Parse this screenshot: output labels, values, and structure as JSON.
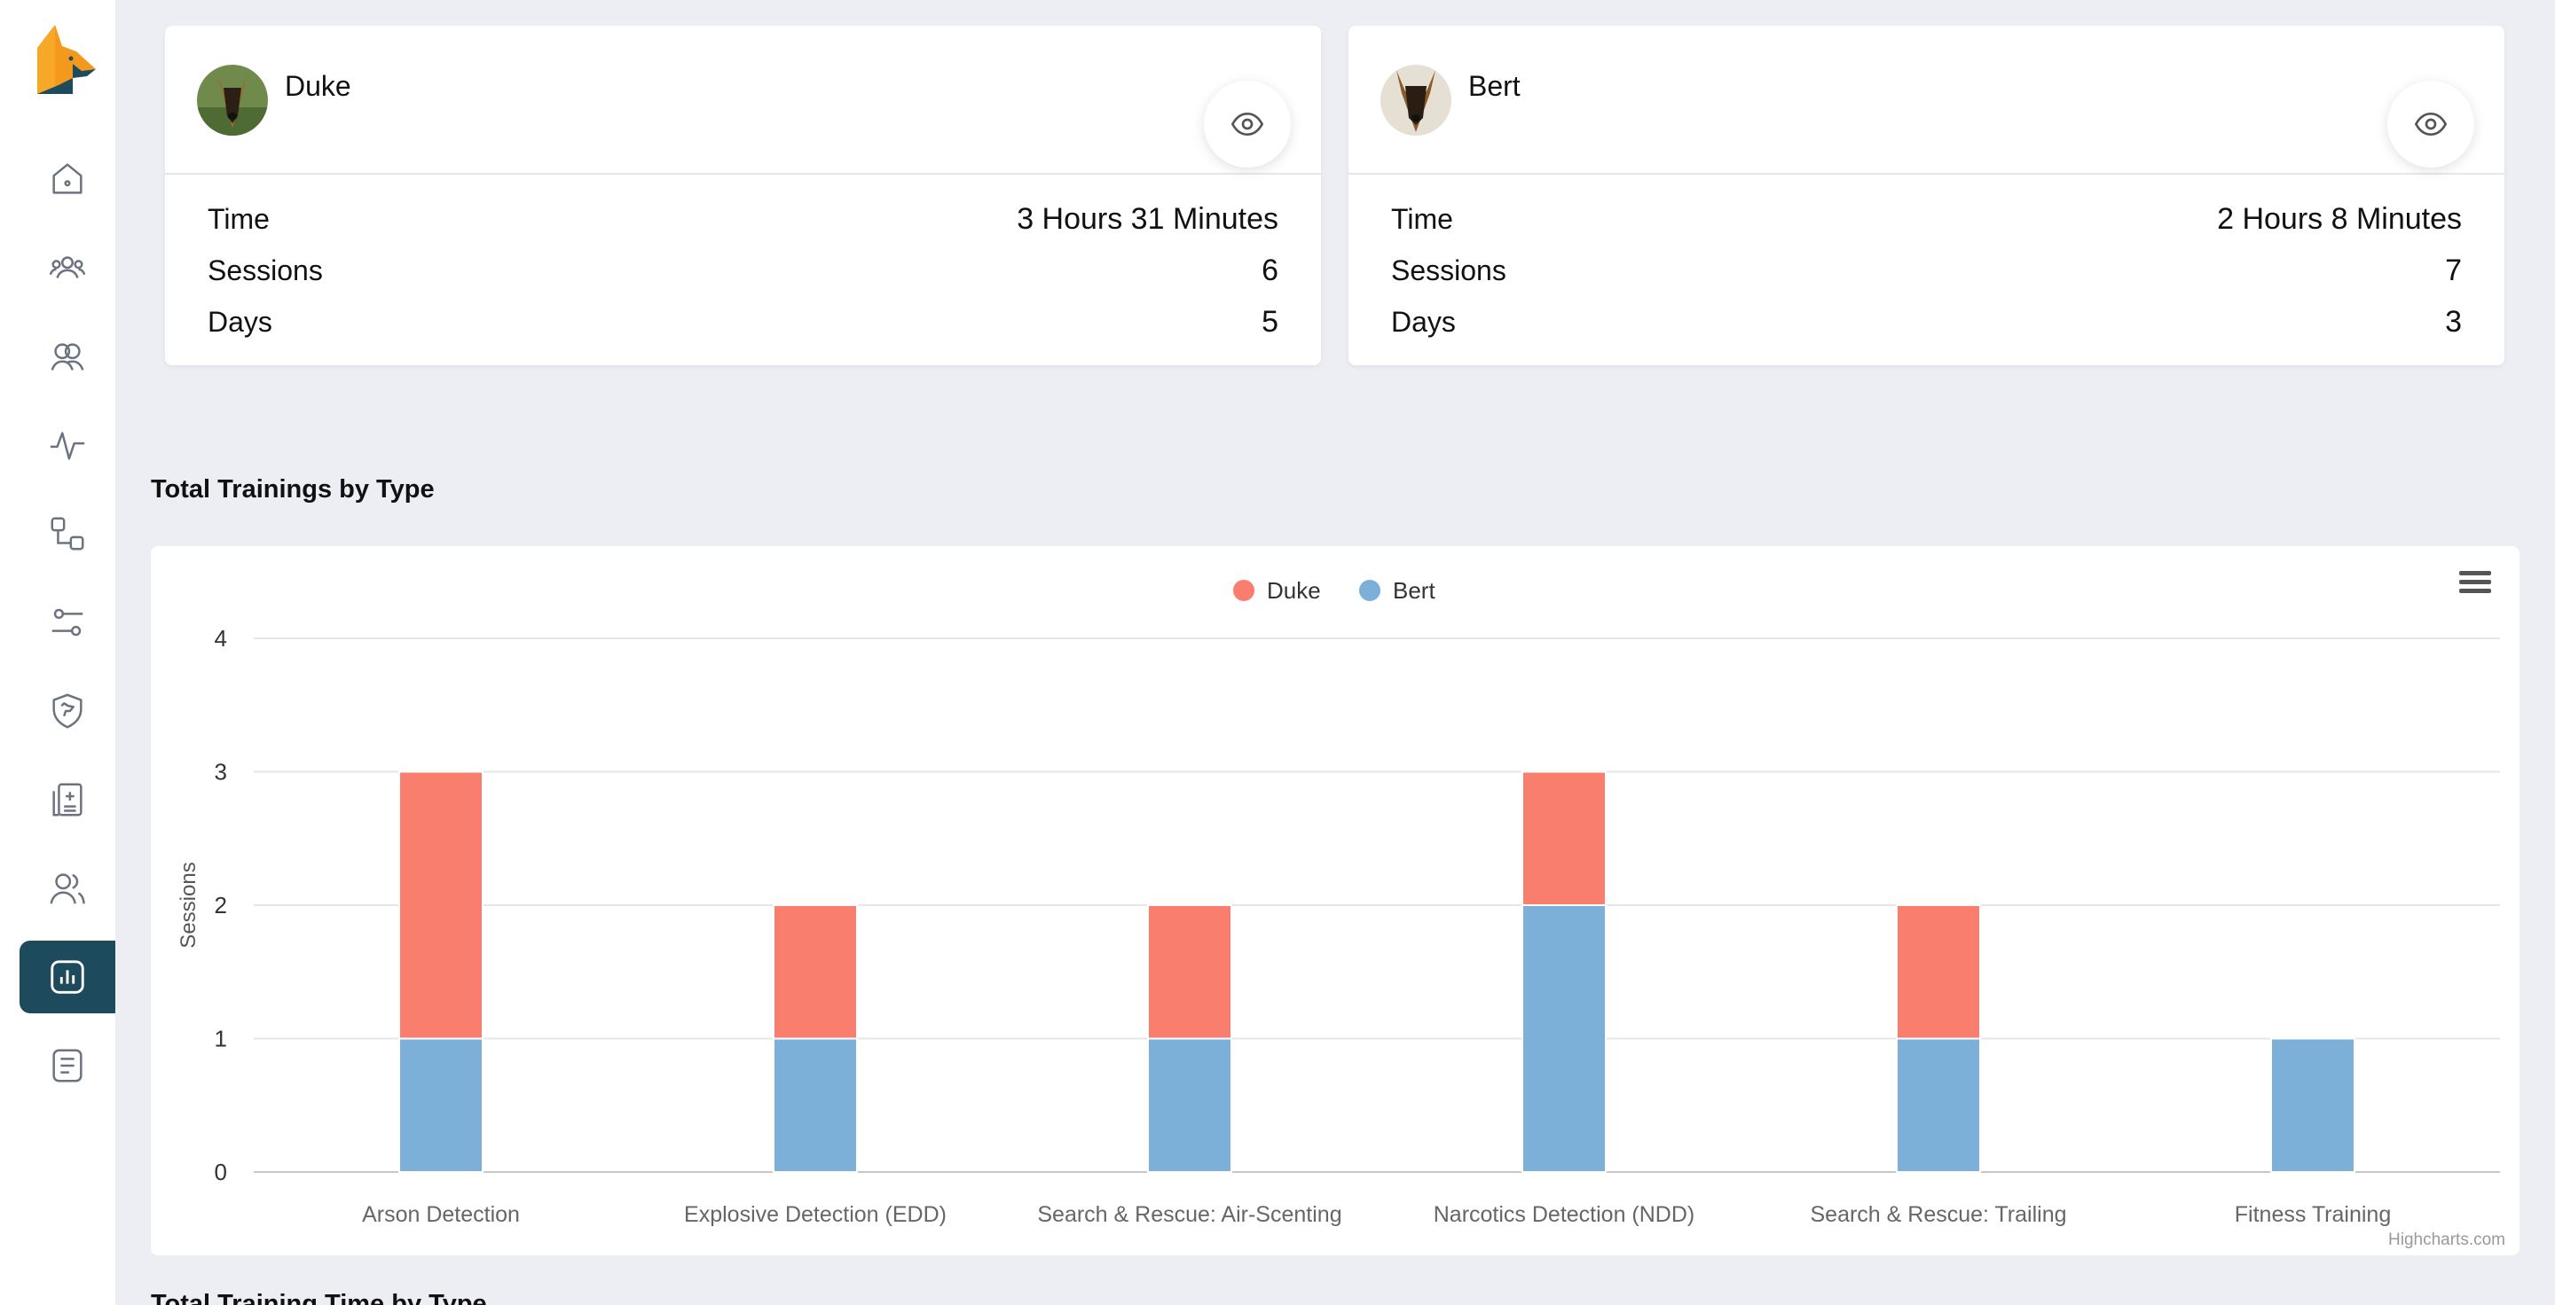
{
  "sidebar": {
    "items": [
      {
        "icon": "home-icon"
      },
      {
        "icon": "users-group-icon"
      },
      {
        "icon": "teams-icon"
      },
      {
        "icon": "activity-icon"
      },
      {
        "icon": "workflow-icon"
      },
      {
        "icon": "sliders-icon"
      },
      {
        "icon": "shield-dog-icon"
      },
      {
        "icon": "medical-report-icon"
      },
      {
        "icon": "people-icon"
      },
      {
        "icon": "reports-chart-icon",
        "active": true
      },
      {
        "icon": "notes-icon"
      }
    ],
    "active_color": "#1d4a5c"
  },
  "cards": [
    {
      "name": "Duke",
      "stats": [
        {
          "label": "Time",
          "value": "3 Hours 31 Minutes"
        },
        {
          "label": "Sessions",
          "value": "6"
        },
        {
          "label": "Days",
          "value": "5"
        }
      ]
    },
    {
      "name": "Bert",
      "stats": [
        {
          "label": "Time",
          "value": "2 Hours 8 Minutes"
        },
        {
          "label": "Sessions",
          "value": "7"
        },
        {
          "label": "Days",
          "value": "3"
        }
      ]
    }
  ],
  "section_title": "Total Trainings by Type",
  "section_title_2": "Total Training Time by Type",
  "chart_data": {
    "type": "bar",
    "stacked": true,
    "categories": [
      "Arson Detection",
      "Explosive Detection (EDD)",
      "Search & Rescue: Air-Scenting",
      "Narcotics Detection (NDD)",
      "Search & Rescue: Trailing",
      "Fitness Training"
    ],
    "series": [
      {
        "name": "Duke",
        "color": "#fa7e6e",
        "values": [
          2,
          1,
          1,
          1,
          1,
          0
        ]
      },
      {
        "name": "Bert",
        "color": "#7cb0d8",
        "values": [
          1,
          1,
          1,
          2,
          1,
          1
        ]
      }
    ],
    "ylabel": "Sessions",
    "ylim": [
      0,
      4
    ],
    "yticks": [
      "0",
      "1",
      "2",
      "3",
      "4"
    ],
    "grid": true,
    "legend": "top-center",
    "credits": "Highcharts.com"
  }
}
